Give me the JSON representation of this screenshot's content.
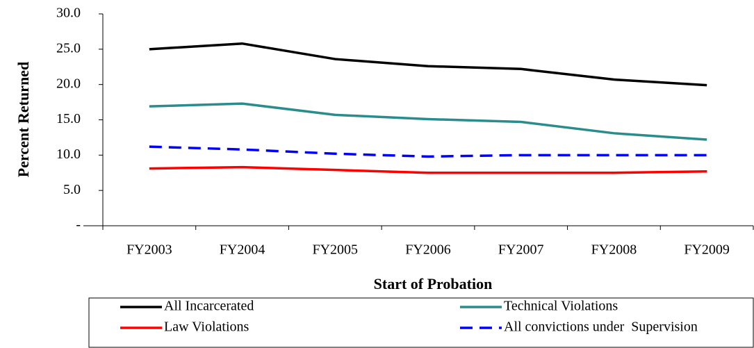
{
  "chart_data": {
    "type": "line",
    "y_label": "Percent Returned",
    "x_label": "Start of Probation",
    "categories": [
      "FY2003",
      "FY2004",
      "FY2005",
      "FY2006",
      "FY2007",
      "FY2008",
      "FY2009"
    ],
    "series": [
      {
        "name": "All Incarcerated",
        "color": "#000000",
        "line_style": "solid",
        "values": [
          25.0,
          25.8,
          23.6,
          22.6,
          22.2,
          20.7,
          19.9
        ]
      },
      {
        "name": "Technical Violations",
        "color": "#2a8c8c",
        "line_style": "solid",
        "values": [
          16.9,
          17.3,
          15.7,
          15.1,
          14.7,
          13.1,
          12.2
        ]
      },
      {
        "name": "Law Violations",
        "color": "#ff0000",
        "line_style": "solid",
        "values": [
          8.1,
          8.3,
          7.9,
          7.5,
          7.5,
          7.5,
          7.7
        ]
      },
      {
        "name": "All convictions under  Supervision",
        "color": "#0000ff",
        "line_style": "dashed",
        "values": [
          11.2,
          10.8,
          10.2,
          9.8,
          10.0,
          10.0,
          10.0
        ]
      }
    ],
    "ylim": [
      0,
      30
    ],
    "yticks": [
      {
        "value": 0,
        "label": "-"
      },
      {
        "value": 5,
        "label": "5.0"
      },
      {
        "value": 10,
        "label": "10.0"
      },
      {
        "value": 15,
        "label": "15.0"
      },
      {
        "value": 20,
        "label": "20.0"
      },
      {
        "value": 25,
        "label": "25.0"
      },
      {
        "value": 30,
        "label": "30.0"
      }
    ],
    "grid": false,
    "legend": "bottom"
  }
}
